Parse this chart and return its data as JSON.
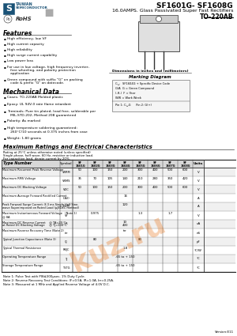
{
  "title_main": "SF1601G- SF1608G",
  "title_sub": "16.0AMPS. Glass Passivated Super Fast Rectifiers",
  "title_package": "TO-220AB",
  "company": "TAIWAN\nSEMICONDUCTOR",
  "features_title": "Features",
  "features": [
    "High efficiency, low VF",
    "High current capacity",
    "High reliability",
    "High surge current capability",
    "Low power loss",
    "For use in low voltage, high frequency inverter,\n   free wheeling, and polarity protection\n   application",
    "Green compound with suffix \"G\" on packing\n   code & prefix \"G\" on datecode."
  ],
  "mech_title": "Mechanical Data",
  "mech": [
    "Cases: TO-220AB Molded plastic",
    "Epoxy: UL 94V-0 rate flame retardant",
    "Terminals: Pure tin plated, lead free, solderable per\n   MIL-STD-202, Method 208 guaranteed",
    "Polarity: As marked",
    "High temperature soldering guaranteed:\n   260°C/10 seconds at 0.375 inches from case",
    "Weight: 1.80 grams"
  ],
  "ratings_title": "Maximum Ratings and Electrical Characteristics",
  "ratings_note1": "Rating at 25°C unless otherwise noted (unless specified)",
  "ratings_note2": "Single phase, half wave, 60 Hz, resistive or inductive load.",
  "ratings_note3": "For capacitive load, derate current by 20%.",
  "col_headers": [
    "SF\n1601G",
    "SF\n1602G",
    "SF\n1603G",
    "SF\n1604G",
    "SF\n1605G",
    "SF\n1606G",
    "SF\n1607G",
    "SF\n1608G",
    "Units"
  ],
  "rows": [
    {
      "param": "Maximum Recurrent Peak Reverse Voltage",
      "symbol": "VRRM",
      "values": [
        "50",
        "100",
        "150",
        "200",
        "300",
        "400",
        "500",
        "600",
        "V"
      ]
    },
    {
      "param": "Maximum RMS Voltage",
      "symbol": "VRMS",
      "values": [
        "35",
        "70",
        "105",
        "140",
        "210",
        "280",
        "350",
        "420",
        "V"
      ]
    },
    {
      "param": "Maximum DC Blocking Voltage",
      "symbol": "VDC",
      "values": [
        "50",
        "100",
        "150",
        "200",
        "300",
        "400",
        "500",
        "600",
        "V"
      ]
    },
    {
      "param": "Maximum Average Forward Rectified Current",
      "symbol": "I(AV)",
      "values": [
        "",
        "",
        "",
        "16",
        "",
        "",
        "",
        "",
        "A"
      ]
    },
    {
      "param": "Peak Forward Surge Current: 8.3 ms Single Half Sine-\nwave Superimposed on Rated Load (µJEDEC method)",
      "symbol": "IFSM",
      "values": [
        "",
        "",
        "",
        "120",
        "",
        "",
        "",
        "",
        "A"
      ]
    },
    {
      "param": "Maximum Instantaneous Forward Voltage   (Note 1)\n@ 8A",
      "symbol": "VF",
      "values": [
        "",
        "0.975",
        "",
        "",
        "1.3",
        "",
        "1.7",
        "",
        "V"
      ]
    },
    {
      "param": "Maximum DC Reverse Current    @ TA=25°C\nat Rated DC Blocking Voltage     @ TJ=100°C",
      "symbol": "IR",
      "values": [
        "",
        "",
        "",
        "10|400",
        "",
        "",
        "",
        "",
        "uA"
      ]
    },
    {
      "param": "Maximum Reverse Recovery Time (Note 2)",
      "symbol": "trr",
      "values": [
        "",
        "",
        "",
        "trr",
        "",
        "",
        "",
        "",
        "nS"
      ]
    },
    {
      "param": "Typical Junction Capacitance (Note 3)",
      "symbol": "CJ",
      "values": [
        "",
        "80",
        "",
        "",
        "80",
        "",
        "",
        "",
        "pF"
      ]
    },
    {
      "param": "Typical Thermal Resistance",
      "symbol": "RθJC",
      "values": [
        "",
        "",
        "",
        "1.8",
        "",
        "",
        "",
        "",
        "°C/W"
      ]
    },
    {
      "param": "Operating Temperature Range",
      "symbol": "TJ",
      "values": [
        "",
        "",
        "",
        "-65 to + 150",
        "",
        "",
        "",
        "",
        "°C"
      ]
    },
    {
      "param": "Storage Temperature Range",
      "symbol": "TSTG",
      "values": [
        "",
        "",
        "",
        "-65 to + 150",
        "",
        "",
        "",
        "",
        "°C"
      ]
    }
  ],
  "notes": [
    "Note 1: Pulse Test with PW≤300μsec, 1% Duty Cycle.",
    "Note 2: Reverse Recovery Test Conditions: IF=0.5A, IR=1.0A, Irr=0.25A.",
    "Note 3: Measured at 1 MHz and Applied Reverse Voltage of 4.0V D.C."
  ],
  "version": "Version:E11",
  "dim_title": "Dimensions in inches and (millimeters)",
  "mark_title": "Marking Diagram",
  "bg_color": "#ffffff",
  "header_bg": "#d0d0d0",
  "border_color": "#000000",
  "text_color": "#000000",
  "logo_color": "#1a5276",
  "table_line_color": "#888888"
}
